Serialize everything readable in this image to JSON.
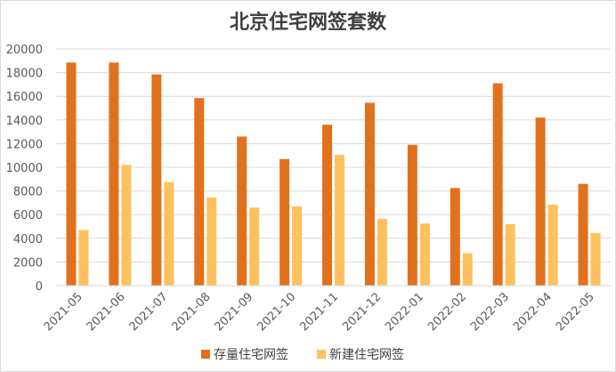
{
  "chart_data": {
    "type": "bar",
    "title": "北京住宅网签套数",
    "xlabel": "",
    "ylabel": "",
    "categories": [
      "2021-05",
      "2021-06",
      "2021-07",
      "2021-08",
      "2021-09",
      "2021-10",
      "2021-11",
      "2021-12",
      "2022-01",
      "2022-02",
      "2022-03",
      "2022-04",
      "2022-05"
    ],
    "series": [
      {
        "name": "存量住宅网签",
        "color": "#E2711D",
        "values": [
          18850,
          18850,
          17850,
          15850,
          12600,
          10700,
          13600,
          15450,
          11900,
          8250,
          17100,
          14200,
          8600
        ]
      },
      {
        "name": "新建住宅网签",
        "color": "#FFC15E",
        "values": [
          4700,
          10200,
          8750,
          7450,
          6600,
          6700,
          11050,
          5650,
          5250,
          2750,
          5200,
          6850,
          4450
        ]
      }
    ],
    "ylim": [
      0,
      20000
    ],
    "yticks": [
      0,
      2000,
      4000,
      6000,
      8000,
      10000,
      12000,
      14000,
      16000,
      18000,
      20000
    ],
    "grid": true,
    "legend_position": "bottom"
  }
}
